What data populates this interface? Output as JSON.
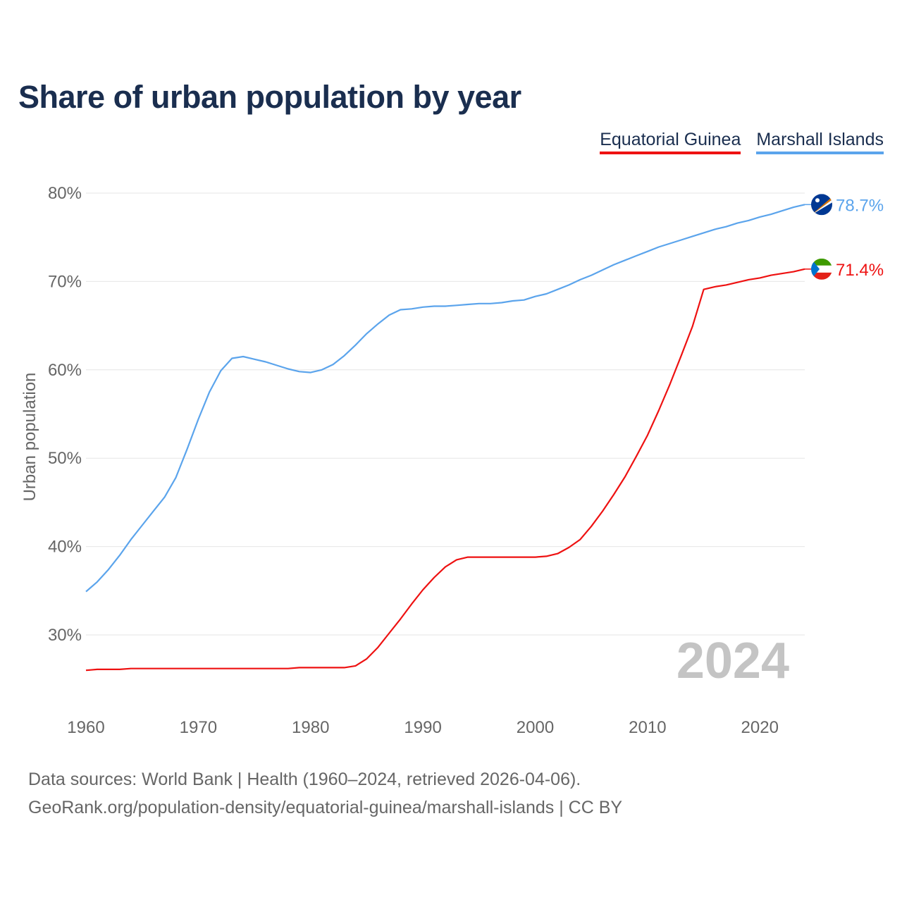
{
  "title": "Share of urban population by year",
  "footer": {
    "line1": "Data sources: World Bank | Health (1960–2024, retrieved 2026-04-06).",
    "line2": "GeoRank.org/population-density/equatorial-guinea/marshall-islands | CC BY"
  },
  "chart_data": {
    "type": "line",
    "title": "Share of urban population by year",
    "xlabel": "",
    "ylabel": "Urban population",
    "xlim": [
      1960,
      2024
    ],
    "ylim": [
      22,
      82
    ],
    "grid": true,
    "legend_position": "top-right",
    "year_watermark": "2024",
    "x_ticks": [
      "1960",
      "1970",
      "1980",
      "1990",
      "2000",
      "2010",
      "2020"
    ],
    "y_ticks": [
      "30%",
      "40%",
      "50%",
      "60%",
      "70%",
      "80%"
    ],
    "x": [
      1960,
      1961,
      1962,
      1963,
      1964,
      1965,
      1966,
      1967,
      1968,
      1969,
      1970,
      1971,
      1972,
      1973,
      1974,
      1975,
      1976,
      1977,
      1978,
      1979,
      1980,
      1981,
      1982,
      1983,
      1984,
      1985,
      1986,
      1987,
      1988,
      1989,
      1990,
      1991,
      1992,
      1993,
      1994,
      1995,
      1996,
      1997,
      1998,
      1999,
      2000,
      2001,
      2002,
      2003,
      2004,
      2005,
      2006,
      2007,
      2008,
      2009,
      2010,
      2011,
      2012,
      2013,
      2014,
      2015,
      2016,
      2017,
      2018,
      2019,
      2020,
      2021,
      2022,
      2023,
      2024
    ],
    "series": [
      {
        "name": "Equatorial Guinea",
        "color": "#ee1111",
        "end_label": "71.4%",
        "values": [
          26.0,
          26.1,
          26.1,
          26.1,
          26.2,
          26.2,
          26.2,
          26.2,
          26.2,
          26.2,
          26.2,
          26.2,
          26.2,
          26.2,
          26.2,
          26.2,
          26.2,
          26.2,
          26.2,
          26.3,
          26.3,
          26.3,
          26.3,
          26.3,
          26.5,
          27.3,
          28.6,
          30.2,
          31.8,
          33.5,
          35.1,
          36.5,
          37.7,
          38.5,
          38.8,
          38.8,
          38.8,
          38.8,
          38.8,
          38.8,
          38.8,
          38.9,
          39.2,
          39.9,
          40.8,
          42.3,
          44.0,
          45.9,
          47.9,
          50.2,
          52.6,
          55.4,
          58.4,
          61.6,
          64.9,
          69.1,
          69.4,
          69.6,
          69.9,
          70.2,
          70.4,
          70.7,
          70.9,
          71.1,
          71.4
        ]
      },
      {
        "name": "Marshall Islands",
        "color": "#5ba4ec",
        "end_label": "78.7%",
        "values": [
          34.9,
          36.0,
          37.4,
          39.0,
          40.8,
          42.4,
          44.0,
          45.6,
          47.8,
          51.0,
          54.4,
          57.5,
          59.9,
          61.3,
          61.5,
          61.2,
          60.9,
          60.5,
          60.1,
          59.8,
          59.7,
          60.0,
          60.6,
          61.6,
          62.8,
          64.1,
          65.2,
          66.2,
          66.8,
          66.9,
          67.1,
          67.2,
          67.2,
          67.3,
          67.4,
          67.5,
          67.5,
          67.6,
          67.8,
          67.9,
          68.3,
          68.6,
          69.1,
          69.6,
          70.2,
          70.7,
          71.3,
          71.9,
          72.4,
          72.9,
          73.4,
          73.9,
          74.3,
          74.7,
          75.1,
          75.5,
          75.9,
          76.2,
          76.6,
          76.9,
          77.3,
          77.6,
          78.0,
          78.4,
          78.7
        ]
      }
    ]
  }
}
